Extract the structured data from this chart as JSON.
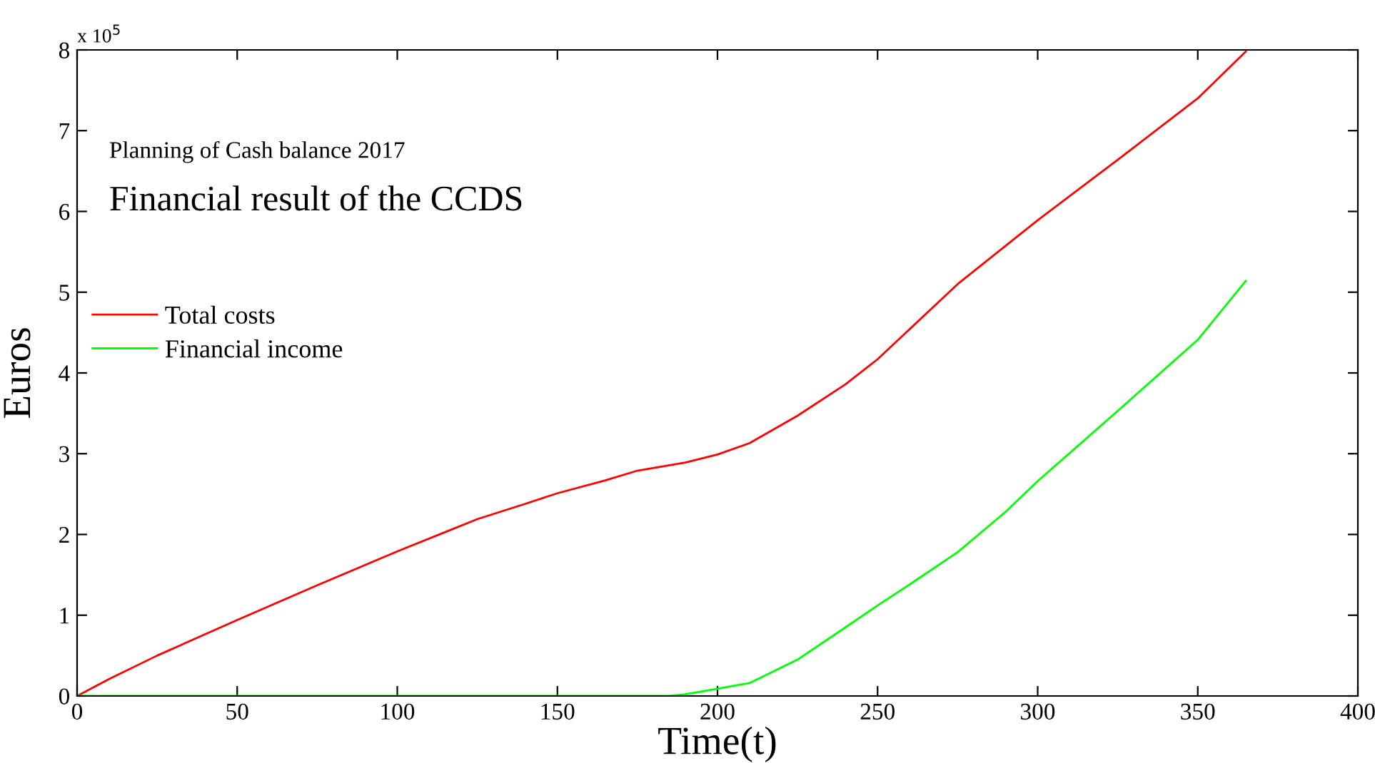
{
  "chart_data": {
    "type": "line",
    "subtitle": "Planning of Cash balance 2017",
    "title": "Financial result of the CCDS",
    "xlabel": "Time(t)",
    "ylabel": "Euros",
    "annotations": [
      "x 10$^{5}$"
    ],
    "series": [
      {
        "name": "Total costs",
        "color": "#ff0000",
        "x": [
          0,
          10,
          25,
          50,
          75,
          100,
          115,
          125,
          140,
          150,
          165,
          175,
          190,
          200,
          210,
          225,
          240,
          250,
          275,
          300,
          325,
          350,
          365
        ],
        "values": [
          0,
          0.21,
          0.5,
          0.94,
          1.37,
          1.79,
          2.03,
          2.19,
          2.38,
          2.51,
          2.67,
          2.79,
          2.89,
          2.99,
          3.13,
          3.47,
          3.86,
          4.17,
          5.1,
          5.89,
          6.64,
          7.4,
          7.98
        ]
      },
      {
        "name": "Financial income",
        "color": "#00ff00",
        "x": [
          0,
          185,
          190,
          200,
          210,
          225,
          240,
          250,
          260,
          275,
          290,
          300,
          325,
          350,
          365
        ],
        "values": [
          0,
          0,
          0.02,
          0.09,
          0.16,
          0.45,
          0.85,
          1.12,
          1.38,
          1.78,
          2.28,
          2.66,
          3.53,
          4.41,
          5.14
        ]
      }
    ],
    "xlim": [
      0,
      400
    ],
    "xticks": [
      0,
      50,
      100,
      150,
      200,
      250,
      300,
      350,
      400
    ],
    "ylim": [
      0,
      8
    ],
    "yticks": [
      0,
      1,
      2,
      3,
      4,
      5,
      6,
      7,
      8
    ],
    "grid": false,
    "legend": "left",
    "marker": "none",
    "line_style": "solid"
  }
}
